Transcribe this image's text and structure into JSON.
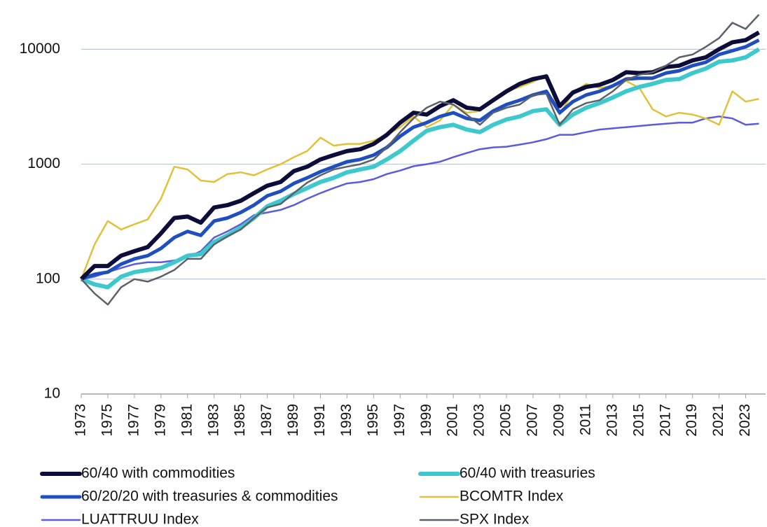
{
  "chart_data": {
    "type": "line",
    "log_y": true,
    "grid": true,
    "x": [
      1973,
      1974,
      1975,
      1976,
      1977,
      1978,
      1979,
      1980,
      1981,
      1982,
      1983,
      1984,
      1985,
      1986,
      1987,
      1988,
      1989,
      1990,
      1991,
      1992,
      1993,
      1994,
      1995,
      1996,
      1997,
      1998,
      1999,
      2000,
      2001,
      2002,
      2003,
      2004,
      2005,
      2006,
      2007,
      2008,
      2009,
      2010,
      2011,
      2012,
      2013,
      2014,
      2015,
      2016,
      2017,
      2018,
      2019,
      2020,
      2021,
      2022,
      2023,
      2024
    ],
    "xlim": [
      1973,
      2024.5
    ],
    "xticks": [
      1973,
      1975,
      1977,
      1979,
      1981,
      1983,
      1985,
      1987,
      1989,
      1991,
      1993,
      1995,
      1997,
      1999,
      2001,
      2003,
      2005,
      2007,
      2009,
      2011,
      2013,
      2015,
      2017,
      2019,
      2021,
      2023
    ],
    "ylim": [
      10,
      25000
    ],
    "yticks": [
      10,
      100,
      1000,
      10000
    ],
    "series": [
      {
        "name": "60/40 with commodities",
        "color": "#0d0d3a",
        "values": [
          100,
          130,
          130,
          160,
          175,
          190,
          250,
          340,
          350,
          310,
          420,
          440,
          480,
          560,
          650,
          700,
          870,
          950,
          1100,
          1200,
          1300,
          1350,
          1500,
          1800,
          2300,
          2800,
          2700,
          3200,
          3600,
          3100,
          3000,
          3600,
          4300,
          5000,
          5500,
          5800,
          3200,
          4200,
          4700,
          4900,
          5400,
          6300,
          6200,
          6300,
          7000,
          7200,
          8000,
          8500,
          10000,
          11500,
          12000,
          14000
        ]
      },
      {
        "name": "60/40 with treasuries",
        "color": "#3cc8cc",
        "values": [
          100,
          90,
          85,
          105,
          115,
          120,
          125,
          140,
          160,
          165,
          210,
          240,
          280,
          340,
          430,
          480,
          550,
          620,
          700,
          760,
          850,
          900,
          950,
          1100,
          1300,
          1600,
          1950,
          2100,
          2200,
          2000,
          1900,
          2200,
          2450,
          2600,
          2900,
          3000,
          2200,
          2700,
          3100,
          3400,
          3800,
          4300,
          4700,
          5000,
          5400,
          5500,
          6200,
          6800,
          7800,
          8000,
          8500,
          10000
        ]
      },
      {
        "name": "60/20/20 with treasuries & commodities",
        "color": "#1f4fbf",
        "values": [
          100,
          110,
          115,
          135,
          150,
          160,
          185,
          230,
          260,
          240,
          320,
          340,
          380,
          440,
          530,
          580,
          680,
          760,
          860,
          950,
          1050,
          1100,
          1200,
          1400,
          1750,
          2100,
          2300,
          2600,
          2800,
          2500,
          2400,
          2900,
          3300,
          3600,
          4000,
          4300,
          2800,
          3500,
          4000,
          4300,
          4800,
          5500,
          5600,
          5600,
          6200,
          6500,
          7200,
          7700,
          9000,
          9700,
          10500,
          12000
        ]
      },
      {
        "name": "BCOMTR Index",
        "color": "#e2c13a",
        "values": [
          100,
          200,
          320,
          270,
          300,
          330,
          500,
          950,
          900,
          720,
          700,
          820,
          850,
          800,
          900,
          1000,
          1150,
          1300,
          1700,
          1450,
          1500,
          1500,
          1600,
          1800,
          2100,
          2600,
          2100,
          2400,
          3300,
          2800,
          2900,
          3700,
          4300,
          4700,
          5200,
          6000,
          2700,
          4200,
          5000,
          4600,
          4800,
          5300,
          4600,
          3000,
          2600,
          2800,
          2700,
          2500,
          2200,
          4300,
          3500,
          3700
        ]
      },
      {
        "name": "LUATTRUU Index",
        "color": "#5b5bdc",
        "values": [
          100,
          105,
          115,
          125,
          135,
          140,
          140,
          145,
          155,
          175,
          230,
          260,
          300,
          360,
          380,
          400,
          440,
          500,
          560,
          620,
          680,
          700,
          740,
          820,
          880,
          960,
          1000,
          1050,
          1150,
          1250,
          1350,
          1400,
          1420,
          1480,
          1550,
          1650,
          1800,
          1800,
          1900,
          2000,
          2050,
          2100,
          2150,
          2200,
          2250,
          2300,
          2300,
          2500,
          2600,
          2500,
          2200,
          2250
        ]
      },
      {
        "name": "SPX Index",
        "color": "#5c6068",
        "values": [
          100,
          75,
          60,
          85,
          100,
          95,
          105,
          120,
          150,
          150,
          200,
          235,
          270,
          340,
          420,
          450,
          560,
          690,
          800,
          900,
          950,
          1000,
          1100,
          1400,
          1900,
          2500,
          3100,
          3500,
          3300,
          2700,
          2200,
          2800,
          3100,
          3300,
          4000,
          4100,
          2200,
          3000,
          3400,
          3600,
          4300,
          5400,
          6000,
          6300,
          7200,
          8500,
          9000,
          10500,
          12500,
          17000,
          15000,
          20000
        ]
      }
    ]
  }
}
